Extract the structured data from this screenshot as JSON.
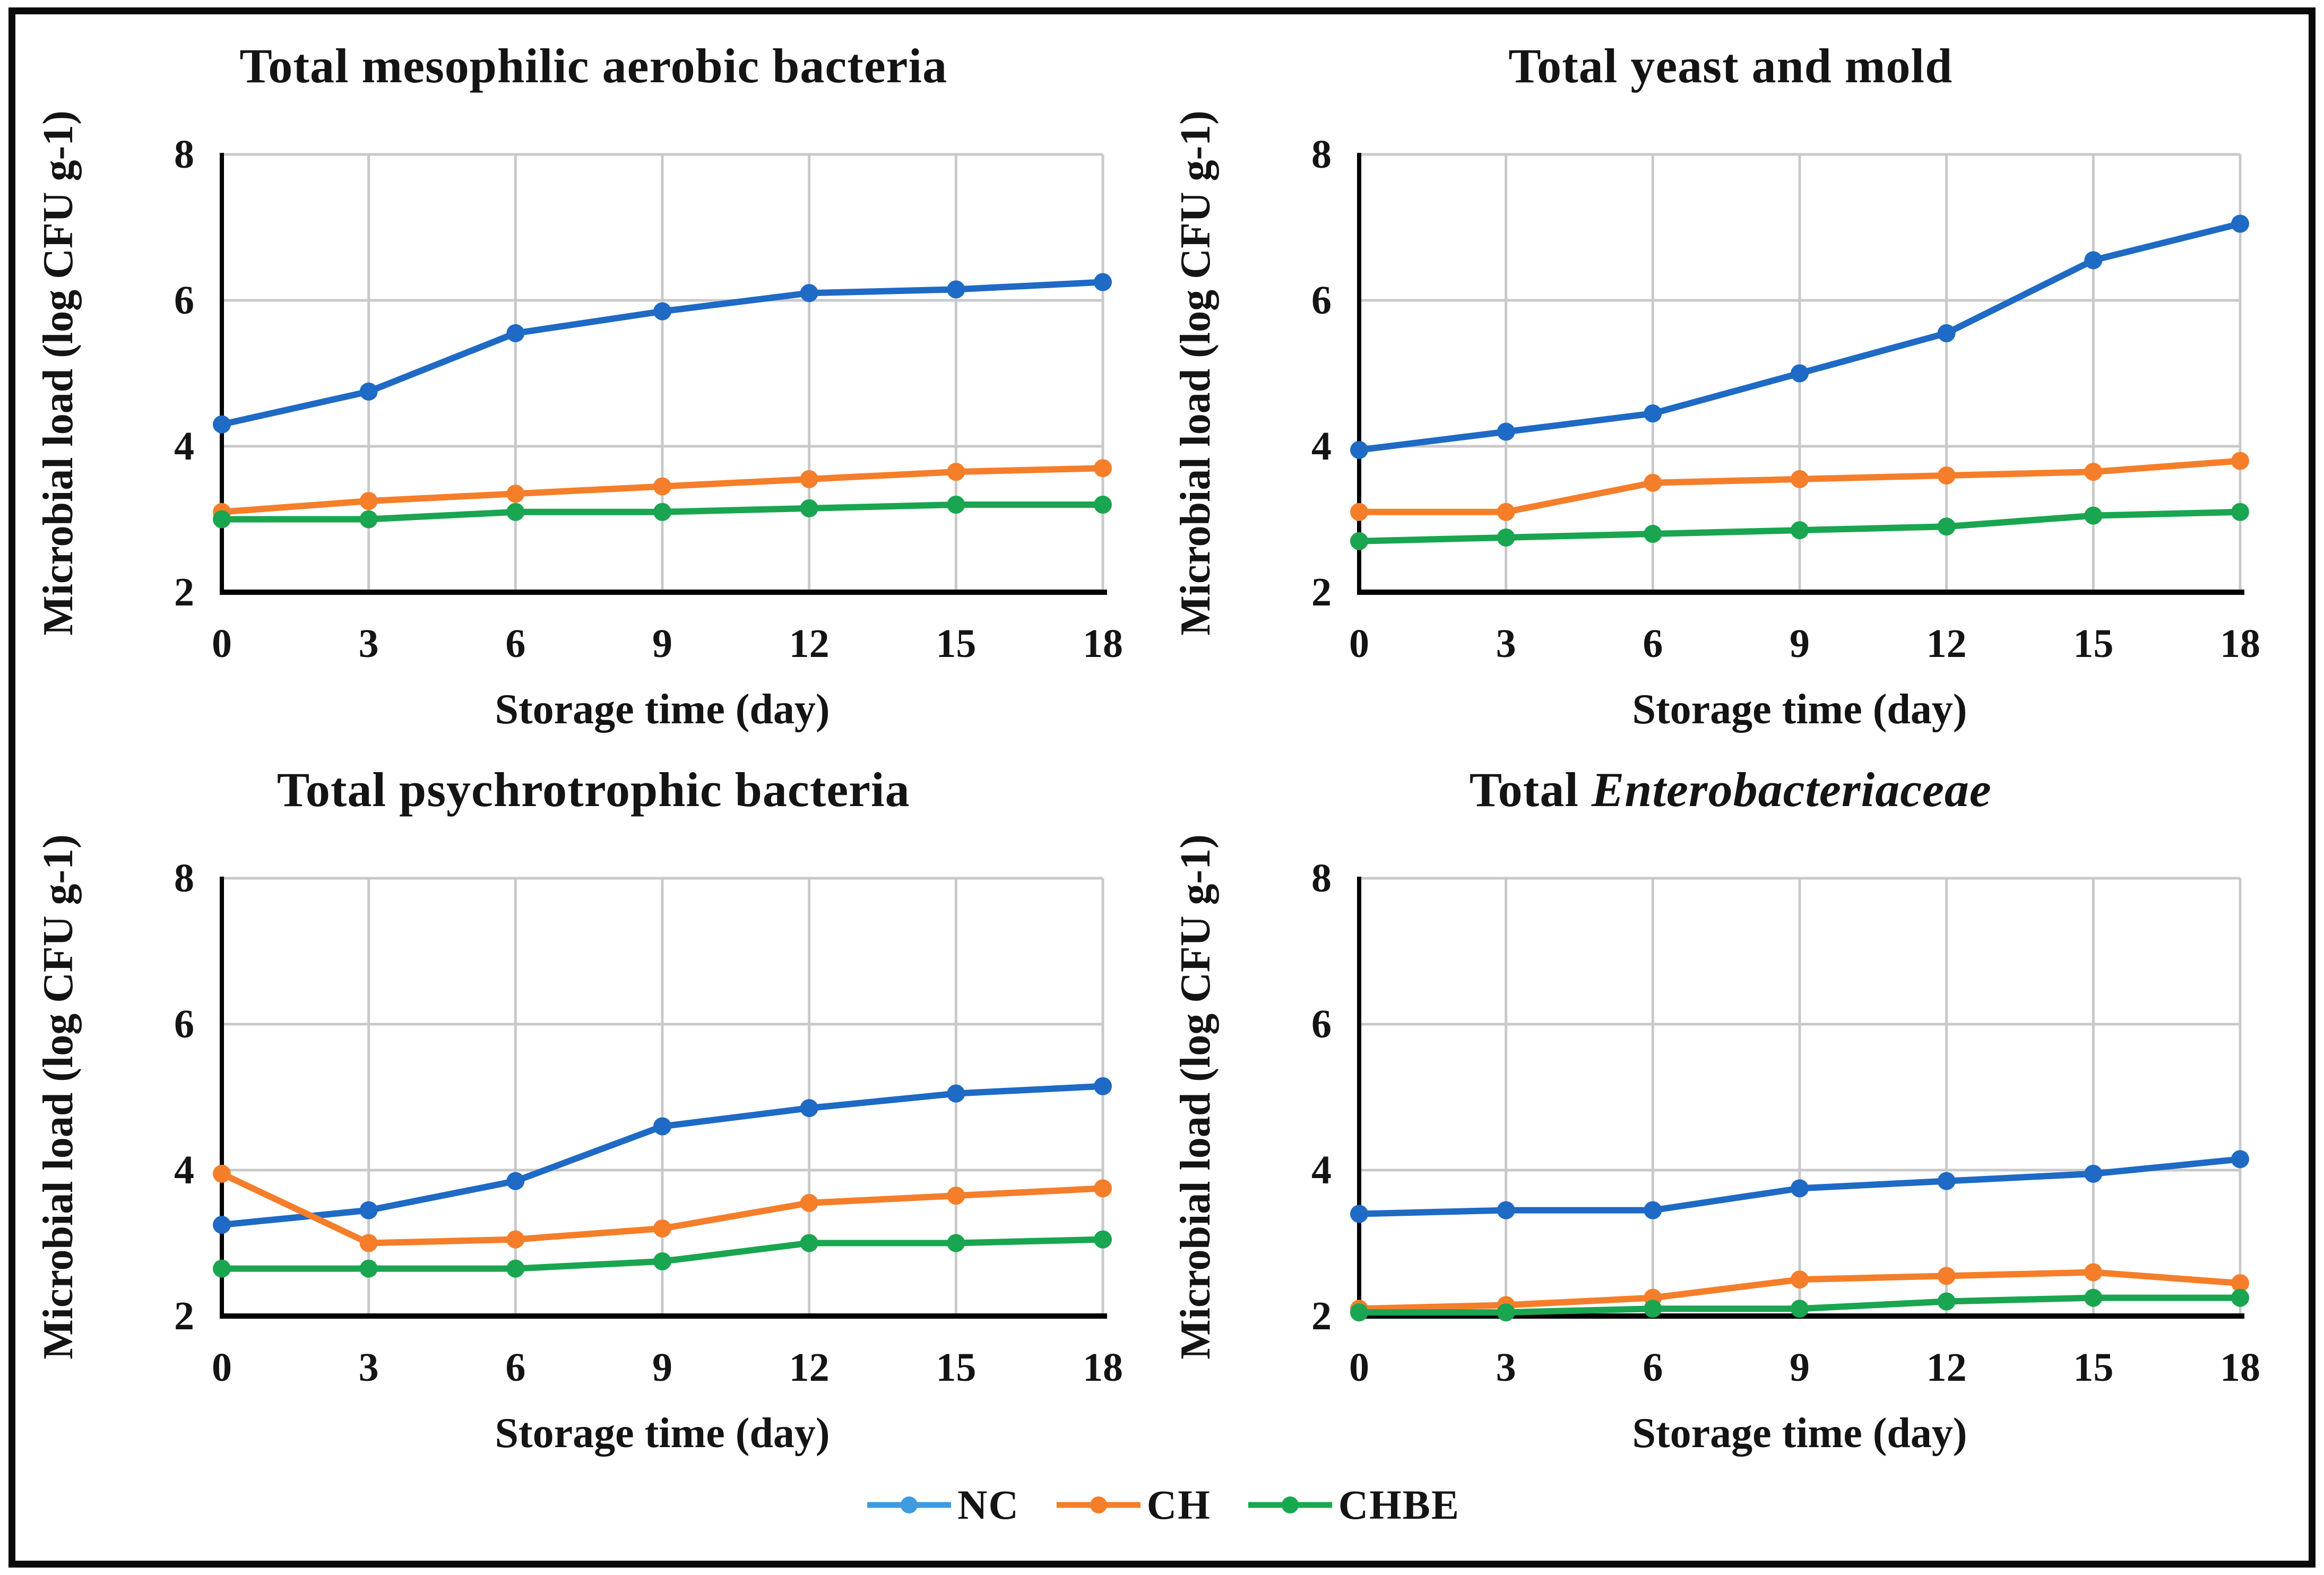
{
  "figure": {
    "background": "#ffffff",
    "frame_color": "#0a0a0a",
    "gridline_color": "#c9c9c9",
    "axis_color": "#000000"
  },
  "legend": {
    "items": [
      {
        "label": "NC",
        "color": "#3e9be0"
      },
      {
        "label": "CH",
        "color": "#f57e2a"
      },
      {
        "label": "CHBE",
        "color": "#18a84e"
      }
    ]
  },
  "chart_data": [
    {
      "type": "line",
      "title_main": "Total mesophilic aerobic bacteria",
      "title_italic": "",
      "xlabel": "Storage time (day)",
      "ylabel": "Microbial load (log CFU g-1)",
      "x": [
        0,
        3,
        6,
        9,
        12,
        15,
        18
      ],
      "xlim": [
        0,
        18
      ],
      "ylim": [
        2,
        8
      ],
      "yticks": [
        2,
        4,
        6,
        8
      ],
      "grid": true,
      "legend_position": "bottom-shared",
      "series": [
        {
          "name": "NC",
          "color": "#1e6ac4",
          "values": [
            4.3,
            4.75,
            5.55,
            5.85,
            6.1,
            6.15,
            6.25
          ]
        },
        {
          "name": "CH",
          "color": "#f57e2a",
          "values": [
            3.1,
            3.25,
            3.35,
            3.45,
            3.55,
            3.65,
            3.7
          ]
        },
        {
          "name": "CHBE",
          "color": "#1aa550",
          "values": [
            3.0,
            3.0,
            3.1,
            3.1,
            3.15,
            3.2,
            3.2
          ]
        }
      ]
    },
    {
      "type": "line",
      "title_main": "Total yeast and mold",
      "title_italic": "",
      "xlabel": "Storage time (day)",
      "ylabel": "Microbial load (log CFU g-1)",
      "x": [
        0,
        3,
        6,
        9,
        12,
        15,
        18
      ],
      "xlim": [
        0,
        18
      ],
      "ylim": [
        2,
        8
      ],
      "yticks": [
        2,
        4,
        6,
        8
      ],
      "grid": true,
      "legend_position": "bottom-shared",
      "series": [
        {
          "name": "NC",
          "color": "#1e6ac4",
          "values": [
            3.95,
            4.2,
            4.45,
            5.0,
            5.55,
            6.55,
            7.05
          ]
        },
        {
          "name": "CH",
          "color": "#f57e2a",
          "values": [
            3.1,
            3.1,
            3.5,
            3.55,
            3.6,
            3.65,
            3.8
          ]
        },
        {
          "name": "CHBE",
          "color": "#1aa550",
          "values": [
            2.7,
            2.75,
            2.8,
            2.85,
            2.9,
            3.05,
            3.1
          ]
        }
      ]
    },
    {
      "type": "line",
      "title_main": "Total psychrotrophic bacteria",
      "title_italic": "",
      "xlabel": "Storage time (day)",
      "ylabel": "Microbial load (log CFU g-1)",
      "x": [
        0,
        3,
        6,
        9,
        12,
        15,
        18
      ],
      "xlim": [
        0,
        18
      ],
      "ylim": [
        2,
        8
      ],
      "yticks": [
        2,
        4,
        6,
        8
      ],
      "grid": true,
      "legend_position": "bottom-shared",
      "series": [
        {
          "name": "NC",
          "color": "#1e6ac4",
          "values": [
            3.25,
            3.45,
            3.85,
            4.6,
            4.85,
            5.05,
            5.15
          ]
        },
        {
          "name": "CH",
          "color": "#f57e2a",
          "values": [
            3.95,
            3.0,
            3.05,
            3.2,
            3.55,
            3.65,
            3.75
          ]
        },
        {
          "name": "CHBE",
          "color": "#1aa550",
          "values": [
            2.65,
            2.65,
            2.65,
            2.75,
            3.0,
            3.0,
            3.05
          ]
        }
      ]
    },
    {
      "type": "line",
      "title_main": "Total ",
      "title_italic": "Enterobacteriaceae",
      "xlabel": "Storage time (day)",
      "ylabel": "Microbial load (log CFU g-1)",
      "x": [
        0,
        3,
        6,
        9,
        12,
        15,
        18
      ],
      "xlim": [
        0,
        18
      ],
      "ylim": [
        2,
        8
      ],
      "yticks": [
        2,
        4,
        6,
        8
      ],
      "grid": true,
      "legend_position": "bottom-shared",
      "series": [
        {
          "name": "NC",
          "color": "#1e6ac4",
          "values": [
            3.4,
            3.45,
            3.45,
            3.75,
            3.85,
            3.95,
            4.15
          ]
        },
        {
          "name": "CH",
          "color": "#f57e2a",
          "values": [
            2.1,
            2.15,
            2.25,
            2.5,
            2.55,
            2.6,
            2.45
          ]
        },
        {
          "name": "CHBE",
          "color": "#1aa550",
          "values": [
            2.05,
            2.05,
            2.1,
            2.1,
            2.2,
            2.25,
            2.25
          ]
        }
      ]
    }
  ]
}
